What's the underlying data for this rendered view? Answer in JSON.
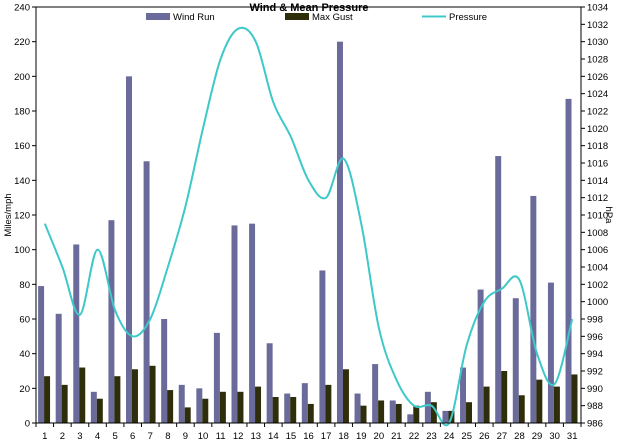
{
  "chart_data": {
    "type": "bar",
    "title": "Wind & Mean Pressure",
    "xlabel": "",
    "ylabel": "Miles/mph",
    "y2label": "hPa",
    "categories": [
      "1",
      "2",
      "3",
      "4",
      "5",
      "6",
      "7",
      "8",
      "9",
      "10",
      "11",
      "12",
      "13",
      "14",
      "15",
      "16",
      "17",
      "18",
      "19",
      "20",
      "21",
      "22",
      "23",
      "24",
      "25",
      "26",
      "27",
      "28",
      "29",
      "30",
      "31"
    ],
    "ylim": [
      0,
      240
    ],
    "y_ticks": [
      "0",
      "20",
      "40",
      "60",
      "80",
      "100",
      "120",
      "140",
      "160",
      "180",
      "200",
      "220",
      "240"
    ],
    "y2lim": [
      986,
      1034
    ],
    "y2_ticks": [
      "986",
      "988",
      "990",
      "992",
      "994",
      "996",
      "998",
      "1000",
      "1002",
      "1004",
      "1006",
      "1008",
      "1010",
      "1012",
      "1014",
      "1016",
      "1018",
      "1020",
      "1022",
      "1024",
      "1026",
      "1028",
      "1030",
      "1032",
      "1034"
    ],
    "legend_position": "top",
    "grid": false,
    "series": [
      {
        "name": "Wind Run",
        "kind": "bar",
        "axis": "left",
        "color": "#6b6b9b",
        "values": [
          79,
          63,
          103,
          18,
          117,
          200,
          151,
          60,
          22,
          20,
          52,
          114,
          115,
          46,
          17,
          23,
          88,
          220,
          17,
          34,
          13,
          5,
          18,
          7,
          32,
          77,
          154,
          72,
          131,
          81,
          187
        ]
      },
      {
        "name": "Max Gust",
        "kind": "bar",
        "axis": "left",
        "color": "#2e2e0a",
        "values": [
          27,
          22,
          32,
          14,
          27,
          31,
          33,
          19,
          9,
          14,
          18,
          18,
          21,
          15,
          15,
          11,
          22,
          31,
          10,
          13,
          11,
          10,
          12,
          7,
          12,
          21,
          30,
          16,
          25,
          21,
          28
        ]
      },
      {
        "name": "Pressure",
        "kind": "line",
        "axis": "right",
        "color": "#3ec8c8",
        "values": [
          1009,
          1004,
          998.5,
          1006,
          999,
          996,
          998,
          1004,
          1011,
          1020,
          1028,
          1031.5,
          1030,
          1023,
          1019,
          1014,
          1012,
          1016.5,
          1009,
          997,
          991,
          988,
          988,
          986,
          995,
          1000,
          1001.5,
          1002.5,
          994,
          990.5,
          998
        ]
      }
    ]
  }
}
